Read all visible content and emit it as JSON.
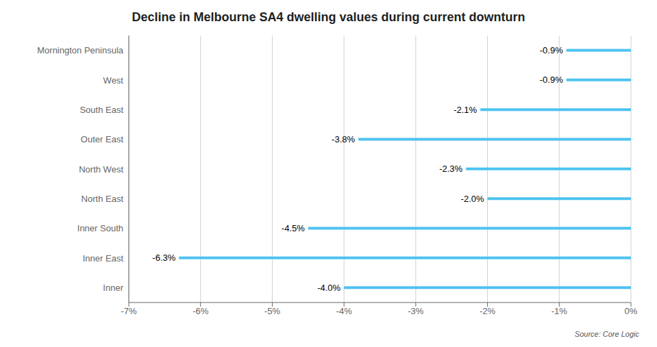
{
  "chart_data": {
    "type": "bar",
    "title": "Decline in Melbourne SA4 dwelling values during current downturn",
    "orientation": "horizontal",
    "categories": [
      "Mornington Peninsula",
      "West",
      "South East",
      "Outer East",
      "North West",
      "North East",
      "Inner South",
      "Inner East",
      "Inner"
    ],
    "values": [
      -0.9,
      -0.9,
      -2.1,
      -3.8,
      -2.3,
      -2.0,
      -4.5,
      -6.3,
      -4.0
    ],
    "value_labels": [
      "-0.9%",
      "-0.9%",
      "-2.1%",
      "-3.8%",
      "-2.3%",
      "-2.0%",
      "-4.5%",
      "-6.3%",
      "-4.0%"
    ],
    "data_labels": true,
    "color": "#4DC3F0",
    "xlim": [
      -7,
      0
    ],
    "xticks": [
      {
        "value": -7,
        "label": "-7%"
      },
      {
        "value": -6,
        "label": "-6%"
      },
      {
        "value": -5,
        "label": "-5%"
      },
      {
        "value": -4,
        "label": "-4%"
      },
      {
        "value": -3,
        "label": "-3%"
      },
      {
        "value": -2,
        "label": "-2%"
      },
      {
        "value": -1,
        "label": "-1%"
      },
      {
        "value": 0,
        "label": "0%"
      }
    ],
    "grid": true,
    "annotations": [
      "Source: Core Logic"
    ]
  }
}
